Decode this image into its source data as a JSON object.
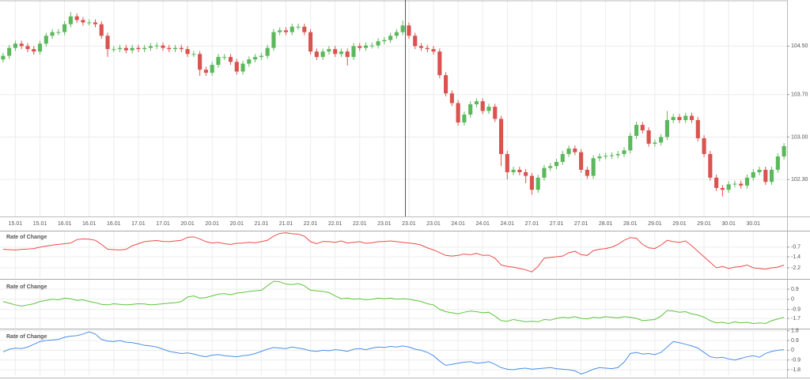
{
  "chart_data": [
    {
      "type": "candlestick",
      "up_color": "#5cb85c",
      "down_color": "#d9534f",
      "grid": true,
      "ylim": [
        101.69,
        105.26
      ],
      "yticks": [
        {
          "value": 104.5,
          "label": "104.50"
        },
        {
          "value": 103.7,
          "label": "103.70"
        },
        {
          "value": 103.0,
          "label": "103.00"
        },
        {
          "value": 102.3,
          "label": "102.30"
        }
      ],
      "categories": [
        null,
        null,
        "15.01",
        null,
        null,
        null,
        "15.01",
        null,
        null,
        null,
        "16.01",
        null,
        null,
        null,
        "16.01",
        null,
        null,
        null,
        "16.01",
        null,
        null,
        null,
        "17.01",
        null,
        null,
        null,
        "17.01",
        null,
        null,
        null,
        "20.01",
        null,
        null,
        null,
        "20.01",
        null,
        null,
        null,
        "20.01",
        null,
        null,
        null,
        "21.01",
        null,
        null,
        null,
        "21.01",
        null,
        null,
        null,
        "22.01",
        null,
        null,
        null,
        "22.01",
        null,
        null,
        null,
        "22.01",
        null,
        null,
        null,
        "23.01",
        null,
        null,
        null,
        "23.01",
        null,
        null,
        null,
        "23.01",
        null,
        null,
        null,
        "24.01",
        null,
        null,
        null,
        "24.01",
        null,
        null,
        null,
        "24.01",
        null,
        null,
        null,
        "27.01",
        null,
        null,
        null,
        "27.01",
        null,
        null,
        null,
        "27.01",
        null,
        null,
        null,
        "28.01",
        null,
        null,
        null,
        "28.01",
        null,
        null,
        null,
        "29.01",
        null,
        null,
        null,
        "29.01",
        null,
        null,
        null,
        "29.01",
        null,
        null,
        null,
        "30.01",
        null,
        null,
        null,
        "30.01",
        null,
        null,
        null,
        null,
        null
      ],
      "open": [
        104.28,
        104.34,
        104.47,
        104.54,
        104.5,
        104.45,
        104.41,
        104.54,
        104.67,
        104.73,
        104.73,
        104.86,
        104.99,
        104.93,
        104.89,
        104.89,
        104.86,
        104.67,
        104.45,
        104.45,
        104.47,
        104.43,
        104.47,
        104.45,
        104.47,
        104.5,
        104.51,
        104.47,
        104.45,
        104.47,
        104.45,
        104.37,
        104.37,
        104.11,
        104.06,
        104.19,
        104.32,
        104.32,
        104.24,
        104.08,
        104.21,
        104.28,
        104.32,
        104.34,
        104.47,
        104.73,
        104.76,
        104.73,
        104.82,
        104.82,
        104.73,
        104.41,
        104.32,
        104.41,
        104.45,
        104.37,
        104.41,
        104.32,
        104.5,
        104.47,
        104.51,
        104.51,
        104.58,
        104.6,
        104.67,
        104.73,
        104.84,
        104.67,
        104.5,
        104.47,
        104.45,
        104.41,
        104.02,
        103.72,
        103.56,
        103.24,
        103.37,
        103.54,
        103.59,
        103.43,
        103.5,
        103.3,
        102.72,
        102.42,
        102.46,
        102.42,
        102.36,
        102.13,
        102.33,
        102.49,
        102.52,
        102.59,
        102.72,
        102.81,
        102.75,
        102.46,
        102.36,
        102.65,
        102.68,
        102.69,
        102.7,
        102.72,
        102.78,
        103.02,
        103.2,
        103.11,
        102.89,
        102.91,
        103.0,
        103.28,
        103.33,
        103.28,
        103.35,
        103.28,
        102.98,
        102.72,
        102.33,
        102.16,
        102.13,
        102.22,
        102.23,
        102.2,
        102.33,
        102.42,
        102.46,
        102.26,
        102.46,
        102.68
      ],
      "high": [
        104.39,
        104.52,
        104.59,
        104.59,
        104.55,
        104.5,
        104.59,
        104.72,
        104.78,
        104.78,
        104.91,
        105.06,
        105.04,
        104.98,
        104.94,
        104.94,
        104.91,
        104.72,
        104.5,
        104.52,
        104.52,
        104.52,
        104.52,
        104.52,
        104.55,
        104.56,
        104.56,
        104.52,
        104.52,
        104.52,
        104.5,
        104.42,
        104.42,
        104.16,
        104.24,
        104.37,
        104.37,
        104.37,
        104.29,
        104.26,
        104.33,
        104.37,
        104.39,
        104.52,
        104.78,
        104.81,
        104.81,
        104.87,
        104.87,
        104.87,
        104.78,
        104.46,
        104.46,
        104.5,
        104.5,
        104.46,
        104.46,
        104.55,
        104.55,
        104.56,
        104.56,
        104.63,
        104.65,
        104.72,
        104.78,
        104.92,
        104.89,
        104.72,
        104.55,
        104.52,
        104.5,
        104.46,
        104.07,
        103.77,
        103.61,
        103.42,
        103.59,
        103.64,
        103.64,
        103.55,
        103.55,
        103.35,
        102.77,
        102.51,
        102.51,
        102.47,
        102.41,
        102.38,
        102.54,
        102.57,
        102.64,
        102.77,
        102.86,
        102.86,
        102.8,
        102.51,
        102.7,
        102.73,
        102.74,
        102.75,
        102.77,
        102.83,
        103.07,
        103.25,
        103.25,
        103.16,
        102.96,
        103.05,
        103.43,
        103.38,
        103.38,
        103.4,
        103.4,
        103.33,
        103.03,
        102.77,
        102.38,
        102.21,
        102.27,
        102.28,
        102.28,
        102.38,
        102.47,
        102.51,
        102.51,
        102.51,
        102.73,
        102.9
      ],
      "low": [
        104.23,
        104.29,
        104.42,
        104.45,
        104.4,
        104.36,
        104.36,
        104.49,
        104.62,
        104.68,
        104.68,
        104.81,
        104.88,
        104.84,
        104.84,
        104.81,
        104.62,
        104.32,
        104.4,
        104.4,
        104.38,
        104.38,
        104.4,
        104.4,
        104.42,
        104.45,
        104.42,
        104.4,
        104.4,
        104.4,
        104.32,
        104.32,
        104.01,
        104.01,
        104.01,
        104.14,
        104.27,
        104.19,
        104.03,
        104.03,
        104.16,
        104.23,
        104.27,
        104.29,
        104.42,
        104.68,
        104.68,
        104.68,
        104.77,
        104.68,
        104.36,
        104.27,
        104.27,
        104.36,
        104.32,
        104.32,
        104.18,
        104.27,
        104.42,
        104.42,
        104.46,
        104.46,
        104.53,
        104.55,
        104.62,
        104.68,
        104.62,
        104.45,
        104.42,
        104.4,
        104.36,
        103.97,
        103.67,
        103.51,
        103.19,
        103.19,
        103.32,
        103.49,
        103.38,
        103.38,
        103.25,
        102.52,
        102.3,
        102.37,
        102.37,
        102.24,
        102.05,
        102.08,
        102.28,
        102.44,
        102.47,
        102.54,
        102.67,
        102.7,
        102.41,
        102.31,
        102.31,
        102.6,
        102.63,
        102.64,
        102.65,
        102.67,
        102.73,
        102.97,
        103.06,
        102.84,
        102.84,
        102.86,
        102.95,
        103.23,
        103.23,
        103.23,
        103.23,
        102.93,
        102.67,
        102.28,
        102.11,
        102.02,
        102.08,
        102.17,
        102.15,
        102.15,
        102.28,
        102.37,
        102.21,
        102.21,
        102.41,
        102.63
      ],
      "close": [
        104.34,
        104.47,
        104.54,
        104.5,
        104.45,
        104.41,
        104.54,
        104.67,
        104.73,
        104.73,
        104.86,
        104.99,
        104.93,
        104.89,
        104.89,
        104.86,
        104.67,
        104.45,
        104.45,
        104.47,
        104.43,
        104.47,
        104.45,
        104.47,
        104.5,
        104.51,
        104.47,
        104.45,
        104.47,
        104.45,
        104.37,
        104.37,
        104.11,
        104.06,
        104.19,
        104.32,
        104.32,
        104.24,
        104.08,
        104.21,
        104.28,
        104.32,
        104.34,
        104.47,
        104.73,
        104.76,
        104.73,
        104.82,
        104.82,
        104.73,
        104.41,
        104.32,
        104.41,
        104.45,
        104.37,
        104.41,
        104.32,
        104.5,
        104.47,
        104.51,
        104.51,
        104.58,
        104.6,
        104.67,
        104.73,
        104.84,
        104.67,
        104.5,
        104.47,
        104.45,
        104.41,
        104.02,
        103.72,
        103.56,
        103.24,
        103.37,
        103.54,
        103.59,
        103.43,
        103.5,
        103.3,
        102.72,
        102.42,
        102.46,
        102.42,
        102.36,
        102.13,
        102.33,
        102.49,
        102.52,
        102.59,
        102.72,
        102.81,
        102.75,
        102.46,
        102.36,
        102.65,
        102.68,
        102.69,
        102.7,
        102.72,
        102.78,
        103.02,
        103.2,
        103.11,
        102.89,
        102.91,
        103.0,
        103.28,
        103.33,
        103.28,
        103.35,
        103.28,
        102.98,
        102.72,
        102.33,
        102.16,
        102.13,
        102.22,
        102.23,
        102.2,
        102.33,
        102.42,
        102.46,
        102.26,
        102.46,
        102.68,
        102.85
      ]
    },
    {
      "type": "line",
      "title": "Rate of Change",
      "grid": true,
      "ylim": [
        -2.95,
        0.5
      ],
      "yticks": [
        -0.7,
        -1.4,
        -2.2
      ],
      "series": [
        {
          "color": "#ee4b4b",
          "values": [
            -0.85,
            -0.88,
            -0.9,
            -0.86,
            -0.84,
            -0.8,
            -0.7,
            -0.62,
            -0.55,
            -0.5,
            -0.45,
            -0.4,
            -0.15,
            -0.1,
            -0.12,
            -0.2,
            -0.5,
            -0.85,
            -0.88,
            -0.9,
            -0.86,
            -0.6,
            -0.45,
            -0.3,
            -0.25,
            -0.22,
            -0.28,
            -0.3,
            -0.25,
            -0.2,
            0.02,
            0.05,
            -0.1,
            -0.3,
            -0.4,
            -0.35,
            -0.45,
            -0.5,
            -0.42,
            -0.4,
            -0.35,
            -0.38,
            -0.3,
            -0.2,
            0.1,
            0.3,
            0.35,
            0.28,
            0.25,
            0.1,
            -0.3,
            -0.45,
            -0.28,
            -0.3,
            -0.35,
            -0.25,
            -0.4,
            -0.35,
            -0.3,
            -0.42,
            -0.38,
            -0.3,
            -0.28,
            -0.25,
            -0.3,
            -0.35,
            -0.4,
            -0.45,
            -0.55,
            -0.75,
            -0.9,
            -1.1,
            -1.3,
            -1.35,
            -1.3,
            -1.2,
            -1.25,
            -1.15,
            -1.3,
            -1.28,
            -1.5,
            -2.0,
            -2.1,
            -2.15,
            -2.25,
            -2.35,
            -2.5,
            -2.1,
            -1.5,
            -1.45,
            -1.4,
            -1.35,
            -1.1,
            -1.0,
            -1.25,
            -1.3,
            -0.95,
            -0.85,
            -0.8,
            -0.7,
            -0.5,
            -0.2,
            0.0,
            -0.05,
            -0.5,
            -0.75,
            -0.8,
            -0.55,
            -0.2,
            -0.3,
            -0.35,
            -0.25,
            -0.6,
            -1.0,
            -1.4,
            -1.8,
            -2.2,
            -2.1,
            -2.25,
            -2.15,
            -2.1,
            -2.0,
            -2.2,
            -2.25,
            -2.3,
            -2.2,
            -2.15,
            -2.0
          ]
        }
      ]
    },
    {
      "type": "line",
      "title": "Rate of Change",
      "grid": true,
      "ylim": [
        -2.54,
        1.67
      ],
      "yticks": [
        0.9,
        0,
        -0.9,
        -1.7
      ],
      "series": [
        {
          "color": "#5dc53b",
          "values": [
            -0.2,
            -0.35,
            -0.5,
            -0.6,
            -0.5,
            -0.4,
            -0.2,
            -0.1,
            0.0,
            -0.05,
            0.1,
            0.05,
            -0.1,
            -0.05,
            -0.2,
            -0.3,
            -0.45,
            -0.5,
            -0.4,
            -0.45,
            -0.5,
            -0.45,
            -0.4,
            -0.42,
            -0.5,
            -0.45,
            -0.4,
            -0.35,
            -0.3,
            -0.2,
            0.2,
            0.3,
            0.1,
            0.15,
            0.3,
            0.45,
            0.5,
            0.4,
            0.55,
            0.6,
            0.7,
            0.75,
            0.8,
            1.2,
            1.6,
            1.55,
            1.35,
            1.3,
            1.4,
            1.2,
            0.8,
            0.75,
            0.7,
            0.6,
            0.3,
            0.05,
            0.1,
            0.0,
            0.05,
            -0.05,
            0.0,
            0.1,
            0.05,
            0.1,
            0.0,
            0.05,
            0.0,
            -0.1,
            -0.2,
            -0.4,
            -0.5,
            -0.9,
            -1.1,
            -1.2,
            -1.3,
            -1.15,
            -1.05,
            -1.1,
            -1.2,
            -1.15,
            -1.5,
            -1.9,
            -1.95,
            -1.8,
            -1.9,
            -2.0,
            -1.95,
            -2.0,
            -1.8,
            -1.85,
            -1.7,
            -1.6,
            -1.65,
            -1.55,
            -1.7,
            -1.75,
            -1.6,
            -1.65,
            -1.55,
            -1.6,
            -1.65,
            -1.55,
            -1.6,
            -1.7,
            -1.9,
            -1.85,
            -1.8,
            -1.5,
            -1.0,
            -1.05,
            -1.15,
            -1.1,
            -1.3,
            -1.4,
            -1.6,
            -1.9,
            -2.1,
            -2.05,
            -2.15,
            -2.0,
            -2.1,
            -2.05,
            -2.15,
            -2.1,
            -2.15,
            -1.9,
            -1.75,
            -1.6
          ]
        }
      ]
    },
    {
      "type": "line",
      "title": "Rate of Change",
      "grid": true,
      "ylim": [
        -2.31,
        1.85
      ],
      "yticks": [
        1.8,
        0.9,
        0,
        -0.9,
        -1.8
      ],
      "series": [
        {
          "color": "#4a8fe7",
          "values": [
            -0.15,
            0.1,
            0.2,
            0.15,
            0.3,
            0.55,
            0.8,
            0.9,
            0.95,
            1.0,
            1.2,
            1.3,
            1.35,
            1.5,
            1.7,
            1.5,
            1.0,
            0.85,
            0.8,
            0.9,
            0.75,
            0.7,
            0.6,
            0.45,
            0.4,
            0.3,
            0.1,
            -0.1,
            -0.2,
            -0.3,
            -0.25,
            -0.35,
            -0.5,
            -0.6,
            -0.45,
            -0.4,
            -0.5,
            -0.55,
            -0.6,
            -0.5,
            -0.45,
            -0.3,
            -0.1,
            0.1,
            0.25,
            0.2,
            0.15,
            0.3,
            0.2,
            0.1,
            -0.05,
            -0.1,
            0.0,
            -0.05,
            0.05,
            0.0,
            -0.1,
            0.1,
            0.15,
            0.05,
            0.2,
            0.3,
            0.25,
            0.35,
            0.3,
            0.4,
            0.3,
            0.1,
            0.0,
            -0.2,
            -0.5,
            -1.0,
            -1.4,
            -1.3,
            -1.2,
            -1.1,
            -1.05,
            -1.2,
            -1.15,
            -1.05,
            -1.3,
            -1.6,
            -1.75,
            -1.8,
            -1.7,
            -1.65,
            -1.75,
            -1.7,
            -1.65,
            -1.6,
            -1.7,
            -1.75,
            -1.8,
            -1.9,
            -2.2,
            -2.0,
            -1.75,
            -1.6,
            -1.65,
            -1.7,
            -1.6,
            -1.1,
            -0.3,
            -0.2,
            -0.35,
            -0.3,
            -0.4,
            -0.2,
            0.3,
            0.8,
            0.7,
            0.55,
            0.4,
            0.2,
            -0.2,
            -0.6,
            -0.7,
            -0.65,
            -0.8,
            -0.9,
            -0.75,
            -0.6,
            -0.5,
            -0.65,
            -0.3,
            -0.1,
            0.0,
            0.05
          ]
        }
      ]
    }
  ]
}
